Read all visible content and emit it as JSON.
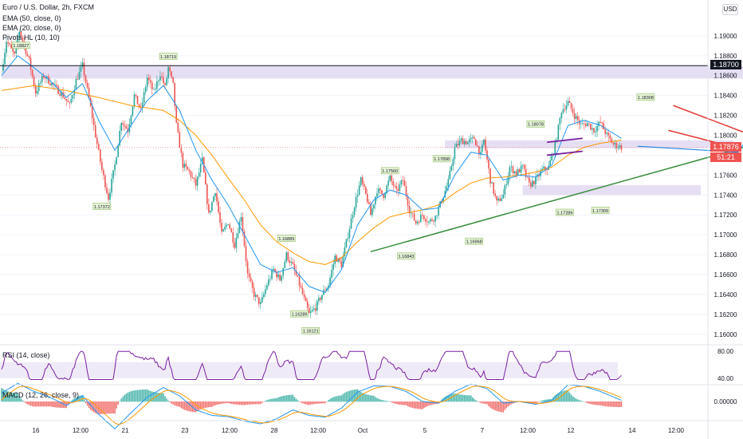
{
  "header": {
    "title": "Euro / U.S. Dollar, 2h, FXCM",
    "ema_fast": "EMA (20, close, 0)",
    "ema_slow": "EMA (50, close, 0)",
    "pivots": "Pivots HL (10, 10)",
    "currency": "USD"
  },
  "colors": {
    "up": "#26a69a",
    "down": "#ef5350",
    "ema_fast": "#2196f3",
    "ema_slow": "#ff9800",
    "zone": "#d1c4e9",
    "trendline": "#388e3c",
    "channel": "#e53935",
    "flag": "#7b1fa2",
    "projection": "#1e88e5",
    "rsi": "#7b1fa2",
    "macd": "#2196f3",
    "signal": "#ff9800"
  },
  "price_tags": {
    "resistance": "1.18700",
    "current": "1.17876",
    "countdown": "51:21"
  },
  "chart_data": {
    "type": "candlestick",
    "title": "Euro / U.S. Dollar, 2h, FXCM",
    "ylim": [
      1.1595,
      1.1928
    ],
    "y_ticks": [
      "1.19000",
      "1.18800",
      "1.18600",
      "1.18400",
      "1.18200",
      "1.18000",
      "1.17800",
      "1.17600",
      "1.17400",
      "1.17200",
      "1.17000",
      "1.16800",
      "1.16600",
      "1.16400",
      "1.16200",
      "1.16000"
    ],
    "x_ticks": [
      "16",
      "12:00",
      "21",
      "23",
      "12:00",
      "28",
      "12:00",
      "Oct",
      "5",
      "7",
      "12:00",
      "12",
      "14",
      "12:00"
    ],
    "close_path": [
      [
        0,
        1.1865
      ],
      [
        3,
        1.1895
      ],
      [
        8,
        1.188
      ],
      [
        11,
        1.1905
      ],
      [
        17,
        1.1875
      ],
      [
        21,
        1.1843
      ],
      [
        26,
        1.186
      ],
      [
        32,
        1.185
      ],
      [
        38,
        1.184
      ],
      [
        42,
        1.183
      ],
      [
        46,
        1.1855
      ],
      [
        50,
        1.187
      ],
      [
        54,
        1.1837
      ],
      [
        58,
        1.18
      ],
      [
        62,
        1.1765
      ],
      [
        66,
        1.1737
      ],
      [
        70,
        1.177
      ],
      [
        74,
        1.1815
      ],
      [
        78,
        1.1805
      ],
      [
        82,
        1.184
      ],
      [
        86,
        1.1825
      ],
      [
        90,
        1.1858
      ],
      [
        94,
        1.1843
      ],
      [
        98,
        1.1862
      ],
      [
        101,
        1.1848
      ],
      [
        103,
        1.1868
      ],
      [
        106,
        1.185
      ],
      [
        108,
        1.181
      ],
      [
        112,
        1.177
      ],
      [
        116,
        1.1763
      ],
      [
        120,
        1.175
      ],
      [
        124,
        1.1775
      ],
      [
        128,
        1.172
      ],
      [
        132,
        1.1745
      ],
      [
        136,
        1.17
      ],
      [
        140,
        1.1713
      ],
      [
        144,
        1.169
      ],
      [
        148,
        1.172
      ],
      [
        152,
        1.166
      ],
      [
        156,
        1.164
      ],
      [
        160,
        1.163
      ],
      [
        164,
        1.165
      ],
      [
        168,
        1.1665
      ],
      [
        172,
        1.1655
      ],
      [
        176,
        1.168
      ],
      [
        180,
        1.1668
      ],
      [
        184,
        1.165
      ],
      [
        188,
        1.163
      ],
      [
        190,
        1.162
      ],
      [
        194,
        1.1627
      ],
      [
        198,
        1.164
      ],
      [
        202,
        1.165
      ],
      [
        206,
        1.1678
      ],
      [
        210,
        1.167
      ],
      [
        214,
        1.17
      ],
      [
        218,
        1.173
      ],
      [
        222,
        1.1755
      ],
      [
        226,
        1.1735
      ],
      [
        228,
        1.172
      ],
      [
        232,
        1.1745
      ],
      [
        236,
        1.174
      ],
      [
        240,
        1.1757
      ],
      [
        244,
        1.1743
      ],
      [
        248,
        1.1755
      ],
      [
        252,
        1.1725
      ],
      [
        256,
        1.1712
      ],
      [
        260,
        1.172
      ],
      [
        264,
        1.1713
      ],
      [
        268,
        1.1718
      ],
      [
        272,
        1.1735
      ],
      [
        276,
        1.1753
      ],
      [
        280,
        1.1787
      ],
      [
        284,
        1.1795
      ],
      [
        288,
        1.1793
      ],
      [
        292,
        1.1797
      ],
      [
        296,
        1.178
      ],
      [
        298,
        1.1795
      ],
      [
        302,
        1.1755
      ],
      [
        306,
        1.1732
      ],
      [
        310,
        1.174
      ],
      [
        314,
        1.1768
      ],
      [
        318,
        1.1762
      ],
      [
        322,
        1.1768
      ],
      [
        326,
        1.175
      ],
      [
        330,
        1.1755
      ],
      [
        334,
        1.1765
      ],
      [
        338,
        1.1768
      ],
      [
        342,
        1.179
      ],
      [
        346,
        1.1825
      ],
      [
        350,
        1.1833
      ],
      [
        354,
        1.182
      ],
      [
        358,
        1.181
      ],
      [
        362,
        1.1812
      ],
      [
        366,
        1.1805
      ],
      [
        370,
        1.1813
      ],
      [
        374,
        1.18
      ],
      [
        378,
        1.1791
      ],
      [
        383,
        1.1788
      ]
    ],
    "ema_fast": [
      [
        0,
        1.186
      ],
      [
        10,
        1.188
      ],
      [
        20,
        1.1868
      ],
      [
        30,
        1.1855
      ],
      [
        40,
        1.1838
      ],
      [
        50,
        1.1852
      ],
      [
        60,
        1.1815
      ],
      [
        70,
        1.1785
      ],
      [
        80,
        1.181
      ],
      [
        90,
        1.1835
      ],
      [
        100,
        1.185
      ],
      [
        110,
        1.1825
      ],
      [
        120,
        1.1785
      ],
      [
        130,
        1.1755
      ],
      [
        140,
        1.173
      ],
      [
        150,
        1.17
      ],
      [
        160,
        1.167
      ],
      [
        170,
        1.1662
      ],
      [
        180,
        1.1667
      ],
      [
        190,
        1.1648
      ],
      [
        200,
        1.1642
      ],
      [
        210,
        1.1665
      ],
      [
        220,
        1.171
      ],
      [
        230,
        1.1735
      ],
      [
        240,
        1.1745
      ],
      [
        250,
        1.174
      ],
      [
        260,
        1.1725
      ],
      [
        270,
        1.1727
      ],
      [
        280,
        1.176
      ],
      [
        290,
        1.1783
      ],
      [
        300,
        1.178
      ],
      [
        310,
        1.1755
      ],
      [
        320,
        1.176
      ],
      [
        330,
        1.1758
      ],
      [
        340,
        1.177
      ],
      [
        350,
        1.181
      ],
      [
        360,
        1.1815
      ],
      [
        370,
        1.181
      ],
      [
        380,
        1.18
      ],
      [
        383,
        1.1797
      ]
    ],
    "ema_slow": [
      [
        0,
        1.1845
      ],
      [
        20,
        1.185
      ],
      [
        40,
        1.1845
      ],
      [
        60,
        1.1838
      ],
      [
        80,
        1.183
      ],
      [
        100,
        1.1825
      ],
      [
        110,
        1.1815
      ],
      [
        120,
        1.18
      ],
      [
        130,
        1.178
      ],
      [
        140,
        1.1757
      ],
      [
        150,
        1.1735
      ],
      [
        160,
        1.171
      ],
      [
        170,
        1.1693
      ],
      [
        180,
        1.1682
      ],
      [
        190,
        1.1673
      ],
      [
        200,
        1.167
      ],
      [
        210,
        1.1677
      ],
      [
        220,
        1.1693
      ],
      [
        230,
        1.1707
      ],
      [
        240,
        1.1718
      ],
      [
        250,
        1.1722
      ],
      [
        260,
        1.1725
      ],
      [
        270,
        1.173
      ],
      [
        280,
        1.1742
      ],
      [
        290,
        1.1752
      ],
      [
        300,
        1.1757
      ],
      [
        310,
        1.1758
      ],
      [
        320,
        1.176
      ],
      [
        330,
        1.1763
      ],
      [
        340,
        1.1768
      ],
      [
        350,
        1.178
      ],
      [
        360,
        1.1788
      ],
      [
        370,
        1.1792
      ],
      [
        383,
        1.1795
      ]
    ],
    "pivot_labels": [
      {
        "label": "1.18827",
        "i": 12,
        "y": 1.1884,
        "side": "above"
      },
      {
        "label": "1.18719",
        "i": 103,
        "y": 1.1873,
        "side": "above"
      },
      {
        "label": "1.17372",
        "i": 62,
        "y": 1.1735,
        "side": "below"
      },
      {
        "label": "1.16289",
        "i": 184,
        "y": 1.1627,
        "side": "below"
      },
      {
        "label": "1.16121",
        "i": 191,
        "y": 1.161,
        "side": "below"
      },
      {
        "label": "1.16889",
        "i": 176,
        "y": 1.169,
        "side": "above"
      },
      {
        "label": "1.17560",
        "i": 240,
        "y": 1.1758,
        "side": "above"
      },
      {
        "label": "1.17898",
        "i": 272,
        "y": 1.177,
        "side": "above"
      },
      {
        "label": "1.16843",
        "i": 250,
        "y": 1.1685,
        "side": "below"
      },
      {
        "label": "1.16968",
        "i": 292,
        "y": 1.17,
        "side": "below"
      },
      {
        "label": "1.18078",
        "i": 330,
        "y": 1.1805,
        "side": "above"
      },
      {
        "label": "1.17289",
        "i": 348,
        "y": 1.1729,
        "side": "below"
      },
      {
        "label": "1.17309",
        "i": 370,
        "y": 1.1731,
        "side": "below"
      },
      {
        "label": "1.18308",
        "i": 398,
        "y": 1.1832,
        "side": "above"
      }
    ],
    "zones": [
      {
        "i0": 0,
        "i1": 504,
        "y0": 1.1857,
        "y1": 1.187
      },
      {
        "i0": 322,
        "i1": 432,
        "y0": 1.174,
        "y1": 1.175
      },
      {
        "i0": 274,
        "i1": 452,
        "y0": 1.1787,
        "y1": 1.1795
      }
    ],
    "horizontal_line": 1.187,
    "trendline": [
      [
        228,
        1.1683
      ],
      [
        470,
        1.1793
      ]
    ],
    "channel_upper": [
      [
        415,
        1.183
      ],
      [
        462,
        1.1801
      ]
    ],
    "channel_lower": [
      [
        412,
        1.1805
      ],
      [
        455,
        1.1787
      ]
    ],
    "flag_upper": [
      [
        337,
        1.1793
      ],
      [
        359,
        1.1797
      ]
    ],
    "flag_lower": [
      [
        337,
        1.178
      ],
      [
        359,
        1.1784
      ]
    ],
    "projection": [
      [
        455,
        1.1783
      ],
      [
        490,
        1.1863
      ]
    ],
    "rsi": {
      "label": "RSI (14, close)",
      "levels": [
        "80.00",
        "40.00"
      ],
      "ylim": [
        35,
        85
      ],
      "band": [
        40,
        64
      ]
    },
    "macd": {
      "label": "MACD (12, 26, close, 9)",
      "levels": [
        "0.00000"
      ]
    }
  }
}
